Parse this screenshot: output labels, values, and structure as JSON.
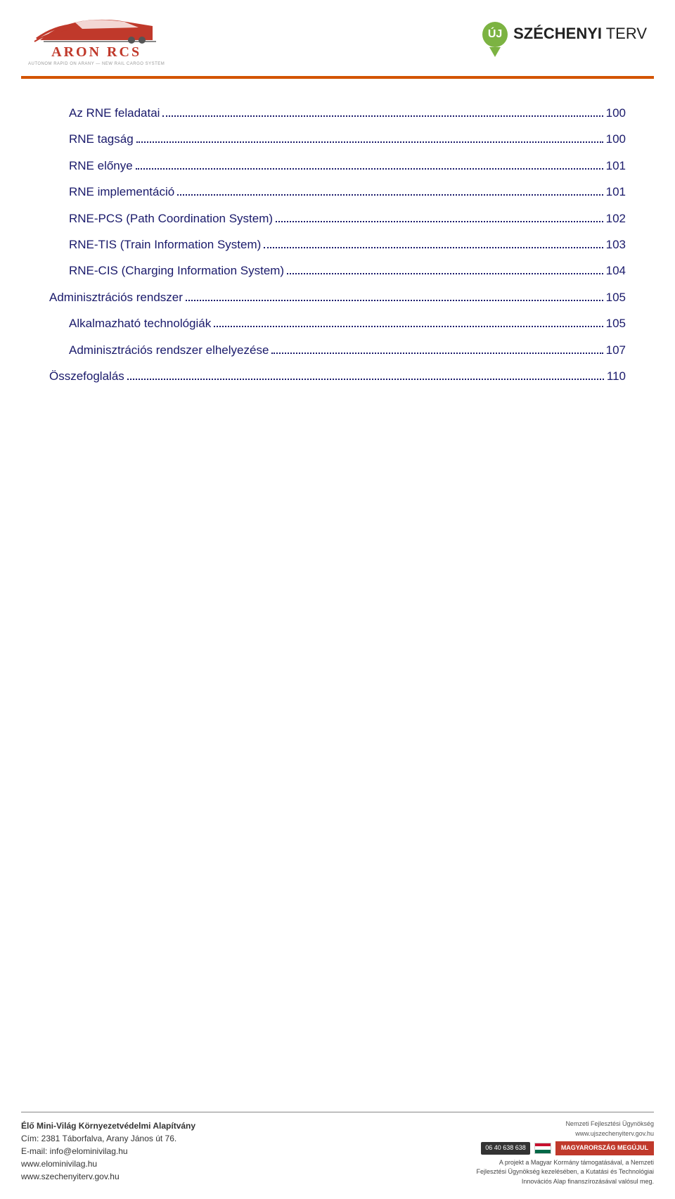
{
  "header": {
    "left_logo_text": "ARON RCS",
    "left_logo_sub": "AUTONOM RAPID ON ARANY — NEW RAIL CARGO SYSTEM",
    "right_uj": "ÚJ",
    "right_brand_bold": "SZÉCHENYI",
    "right_brand_rest": " TERV",
    "logo_color": "#c0392b",
    "pin_color": "#7cb342",
    "rule_color": "#d35400"
  },
  "toc": {
    "text_color": "#1a1a6b",
    "items": [
      {
        "indent": 1,
        "label": "Az RNE feladatai",
        "page": "100"
      },
      {
        "indent": 1,
        "label": "RNE tagság",
        "page": "100"
      },
      {
        "indent": 1,
        "label": "RNE előnye",
        "page": "101"
      },
      {
        "indent": 1,
        "label": "RNE implementáció",
        "page": "101"
      },
      {
        "indent": 1,
        "label": "RNE-PCS (Path Coordination System)",
        "page": "102"
      },
      {
        "indent": 1,
        "label": "RNE-TIS (Train Information System)",
        "page": "103"
      },
      {
        "indent": 1,
        "label": "RNE-CIS (Charging Information System)",
        "page": "104"
      },
      {
        "indent": 0,
        "label": "Adminisztrációs rendszer",
        "page": "105"
      },
      {
        "indent": 1,
        "label": "Alkalmazható technológiák",
        "page": "105"
      },
      {
        "indent": 1,
        "label": "Adminisztrációs rendszer elhelyezése",
        "page": "107"
      },
      {
        "indent": 0,
        "label": "Összefoglalás",
        "page": "110"
      }
    ]
  },
  "footer": {
    "org": "Élő Mini-Világ Környezetvédelmi Alapítvány",
    "address": "Cím: 2381 Táborfalva, Arany János út 76.",
    "email": "E-mail: info@elominivilag.hu",
    "url1": "www.elominivilag.hu",
    "url2": "www.szechenyiterv.gov.hu",
    "agency_line1": "Nemzeti Fejlesztési Ügynökség",
    "agency_line2": "www.ujszechenyiterv.gov.hu",
    "phone": "06 40 638 638",
    "badge": "MAGYARORSZÁG MEGÚJUL",
    "desc1": "A projekt a Magyar Kormány támogatásával, a Nemzeti",
    "desc2": "Fejlesztési Ügynökség kezelésében, a Kutatási és Technológiai",
    "desc3": "Innovációs Alap finanszírozásával valósul meg.",
    "flag_colors": [
      "#c8102e",
      "#ffffff",
      "#006847"
    ],
    "badge_bg": "#c0392b"
  }
}
